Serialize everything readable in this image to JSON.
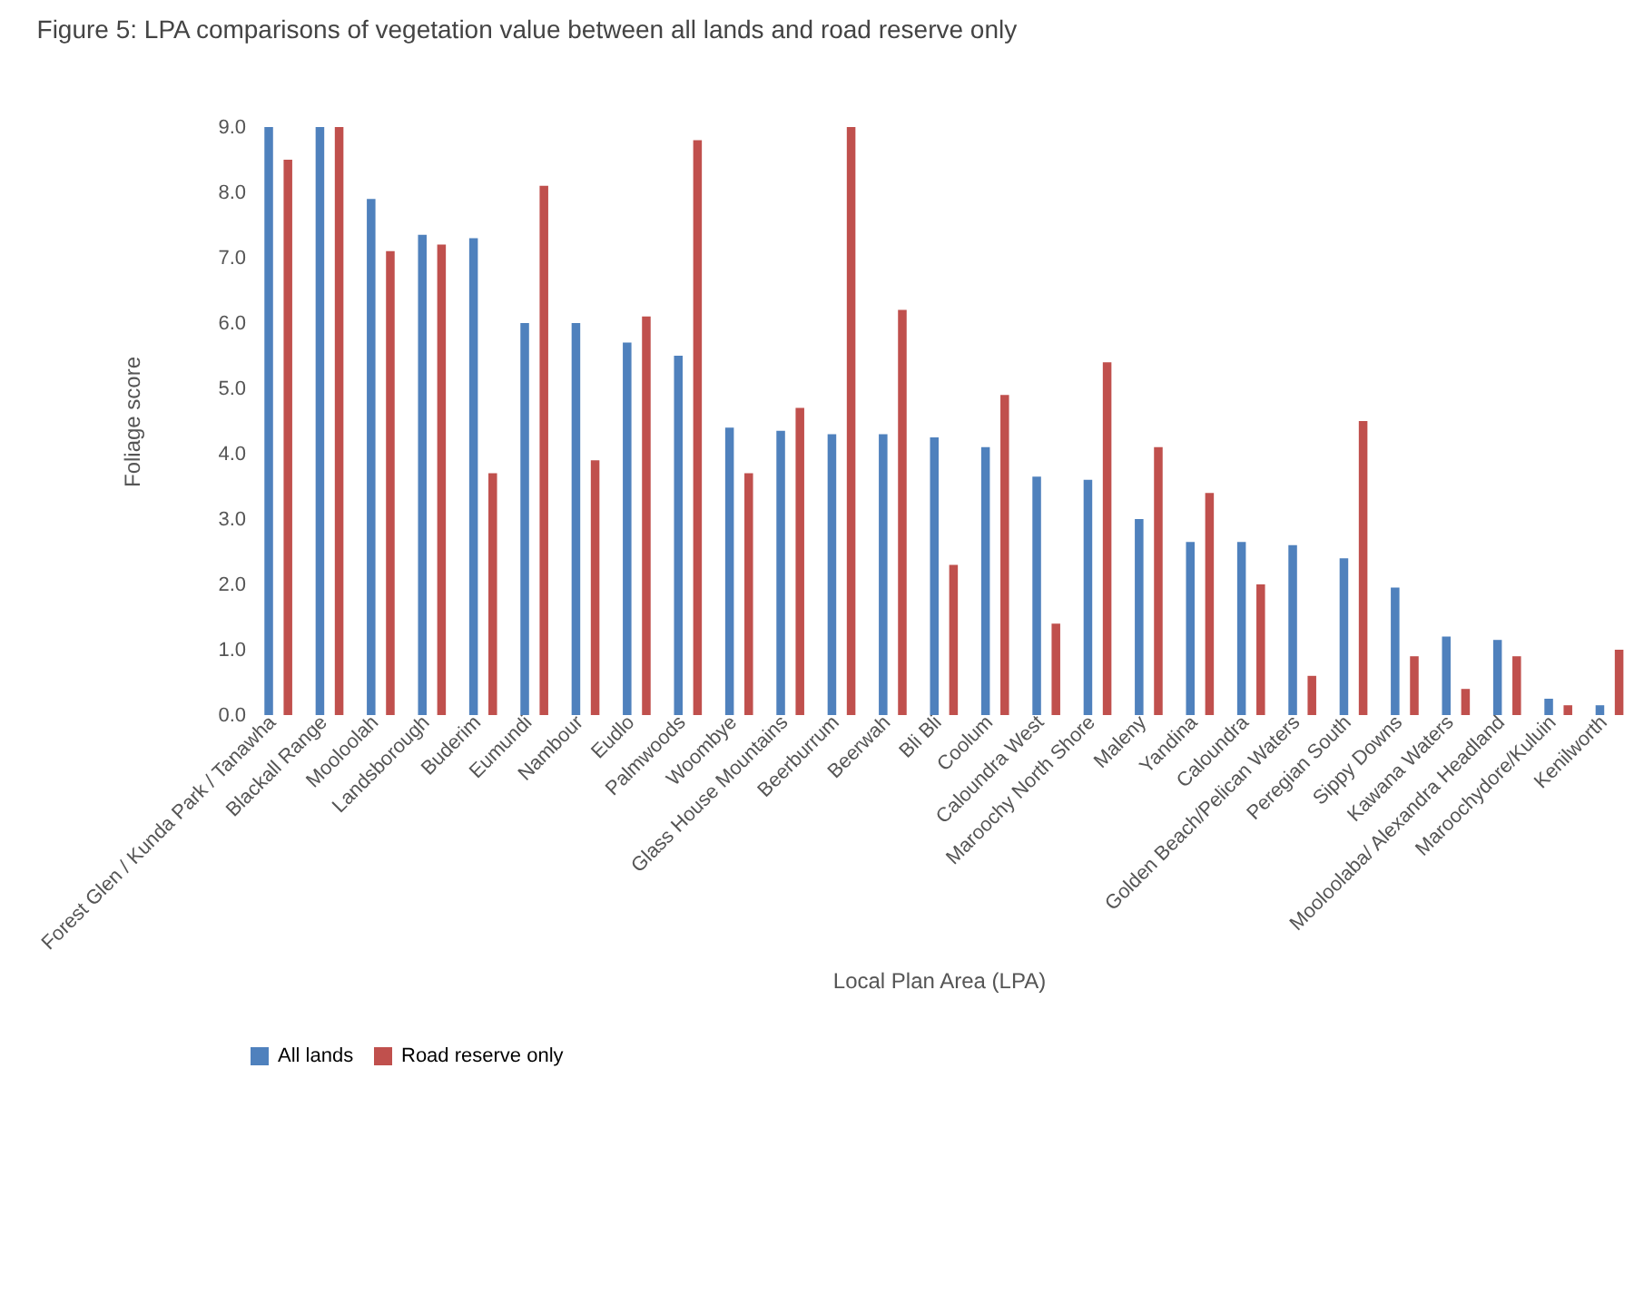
{
  "chart_data": {
    "type": "bar",
    "title": "Figure 5: LPA comparisons of vegetation value between all lands and road reserve only",
    "xlabel": "Local Plan Area (LPA)",
    "ylabel": "Foliage score",
    "categories": [
      "Forest Glen / Kunda Park / Tanawha",
      "Blackall Range",
      "Mooloolah",
      "Landsborough",
      "Buderim",
      "Eumundi",
      "Nambour",
      "Eudlo",
      "Palmwoods",
      "Woombye",
      "Glass House Mountains",
      "Beerburrum",
      "Beerwah",
      "Bli Bli",
      "Coolum",
      "Caloundra West",
      "Maroochy North Shore",
      "Maleny",
      "Yandina",
      "Caloundra",
      "Golden Beach/Pelican Waters",
      "Peregian South",
      "Sippy Downs",
      "Kawana Waters",
      "Mooloolaba/ Alexandra Headland",
      "Maroochydore/Kuluin",
      "Kenilworth"
    ],
    "series": [
      {
        "name": "All lands",
        "color": "#4f81bd",
        "values": [
          9.0,
          9.0,
          7.9,
          7.35,
          7.3,
          6.0,
          6.0,
          5.7,
          5.5,
          4.4,
          4.35,
          4.3,
          4.3,
          4.25,
          4.1,
          3.65,
          3.6,
          3.0,
          2.65,
          2.65,
          2.6,
          2.4,
          1.95,
          1.2,
          1.15,
          0.25,
          0.15
        ]
      },
      {
        "name": "Road reserve only",
        "color": "#c0504d",
        "values": [
          8.5,
          9.0,
          7.1,
          7.2,
          3.7,
          8.1,
          3.9,
          6.1,
          8.8,
          3.7,
          4.7,
          9.0,
          6.2,
          2.3,
          4.9,
          1.4,
          5.4,
          4.1,
          3.4,
          2.0,
          0.6,
          4.5,
          0.9,
          0.4,
          0.9,
          0.15,
          1.0
        ]
      }
    ],
    "ylim": [
      0,
      9
    ],
    "yticks": [
      {
        "value": 0,
        "label": "0.0"
      },
      {
        "value": 1,
        "label": "1.0"
      },
      {
        "value": 2,
        "label": "2.0"
      },
      {
        "value": 3,
        "label": "3.0"
      },
      {
        "value": 4,
        "label": "4.0"
      },
      {
        "value": 5,
        "label": "5.0"
      },
      {
        "value": 6,
        "label": "6.0"
      },
      {
        "value": 7,
        "label": "7.0"
      },
      {
        "value": 8,
        "label": "8.0"
      },
      {
        "value": 9,
        "label": "9.0"
      }
    ],
    "grid": false,
    "legend": "bottom"
  }
}
